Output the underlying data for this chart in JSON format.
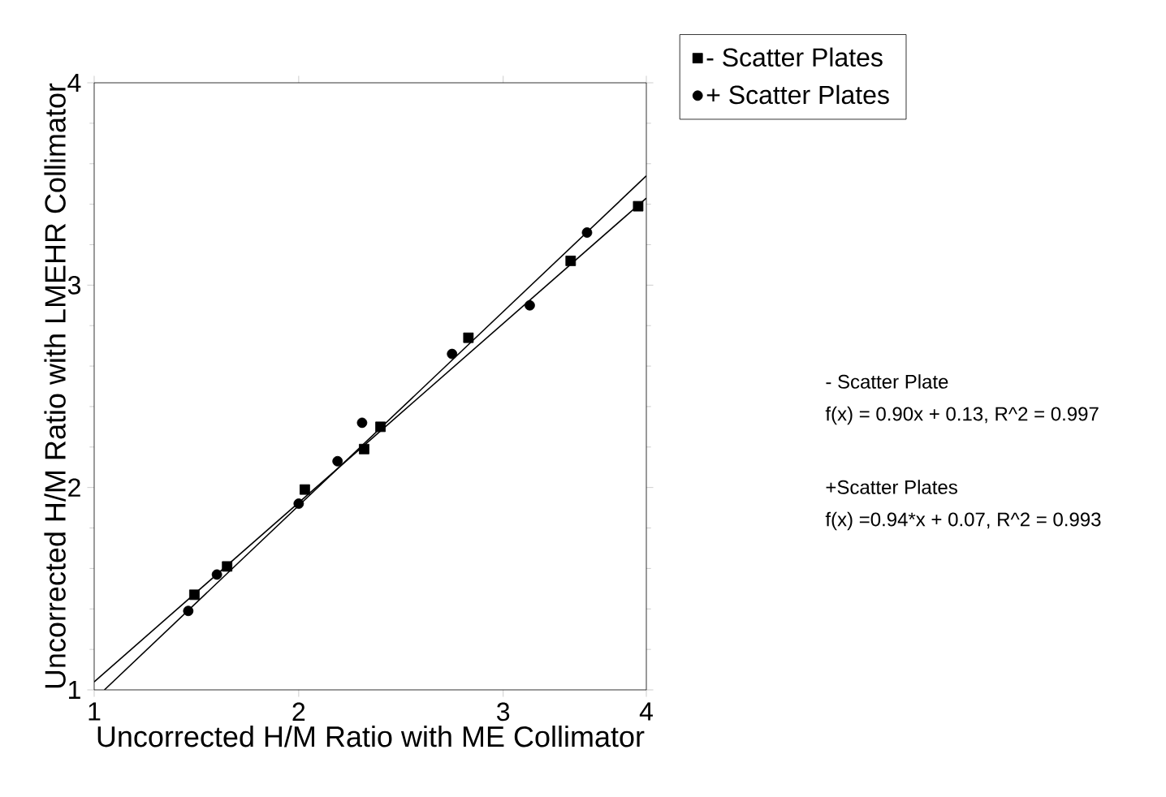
{
  "chart_data": {
    "type": "scatter",
    "xlabel": "Uncorrected H/M Ratio with ME Collimator",
    "ylabel": "Uncorrected H/M Ratio with LMEHR Collimator",
    "xlim": [
      1,
      3.7
    ],
    "xticks": [
      1,
      2,
      3,
      {
        "value": 3.7,
        "label": "4"
      }
    ],
    "ylim": [
      1,
      4
    ],
    "yticks": [
      1,
      2,
      3,
      4
    ],
    "grid": false,
    "legend": "top right",
    "series": [
      {
        "name": "- Scatter Plates",
        "color": "#000000",
        "marker": "square",
        "x": [
          1.49,
          1.65,
          2.03,
          2.32,
          2.4,
          2.83,
          3.33,
          3.66
        ],
        "values": [
          1.47,
          1.61,
          1.99,
          2.19,
          2.3,
          2.74,
          3.12,
          3.39
        ]
      },
      {
        "name": "+ Scatter Plates",
        "color": "#000000",
        "marker": "circle",
        "x": [
          1.46,
          1.6,
          2.0,
          2.19,
          2.31,
          2.75,
          3.13,
          3.41
        ],
        "values": [
          1.39,
          1.57,
          1.92,
          2.13,
          2.32,
          2.66,
          2.9,
          3.26
        ]
      },
      {
        "type": "line",
        "color": "#000000",
        "marker": "none",
        "x": [
          1,
          3.7
        ],
        "values": [
          1.04,
          3.43
        ]
      },
      {
        "type": "line",
        "color": "#000000",
        "marker": "none",
        "x": [
          1.05,
          3.7
        ],
        "values": [
          1.0,
          3.54
        ]
      }
    ],
    "annotations": [
      "- Scatter Plate",
      "f(x) = 0.90x + 0.13, R^2 = 0.997",
      "+Scatter Plates",
      "f(x) =0.94*x + 0.07, R^2 = 0.993"
    ]
  }
}
